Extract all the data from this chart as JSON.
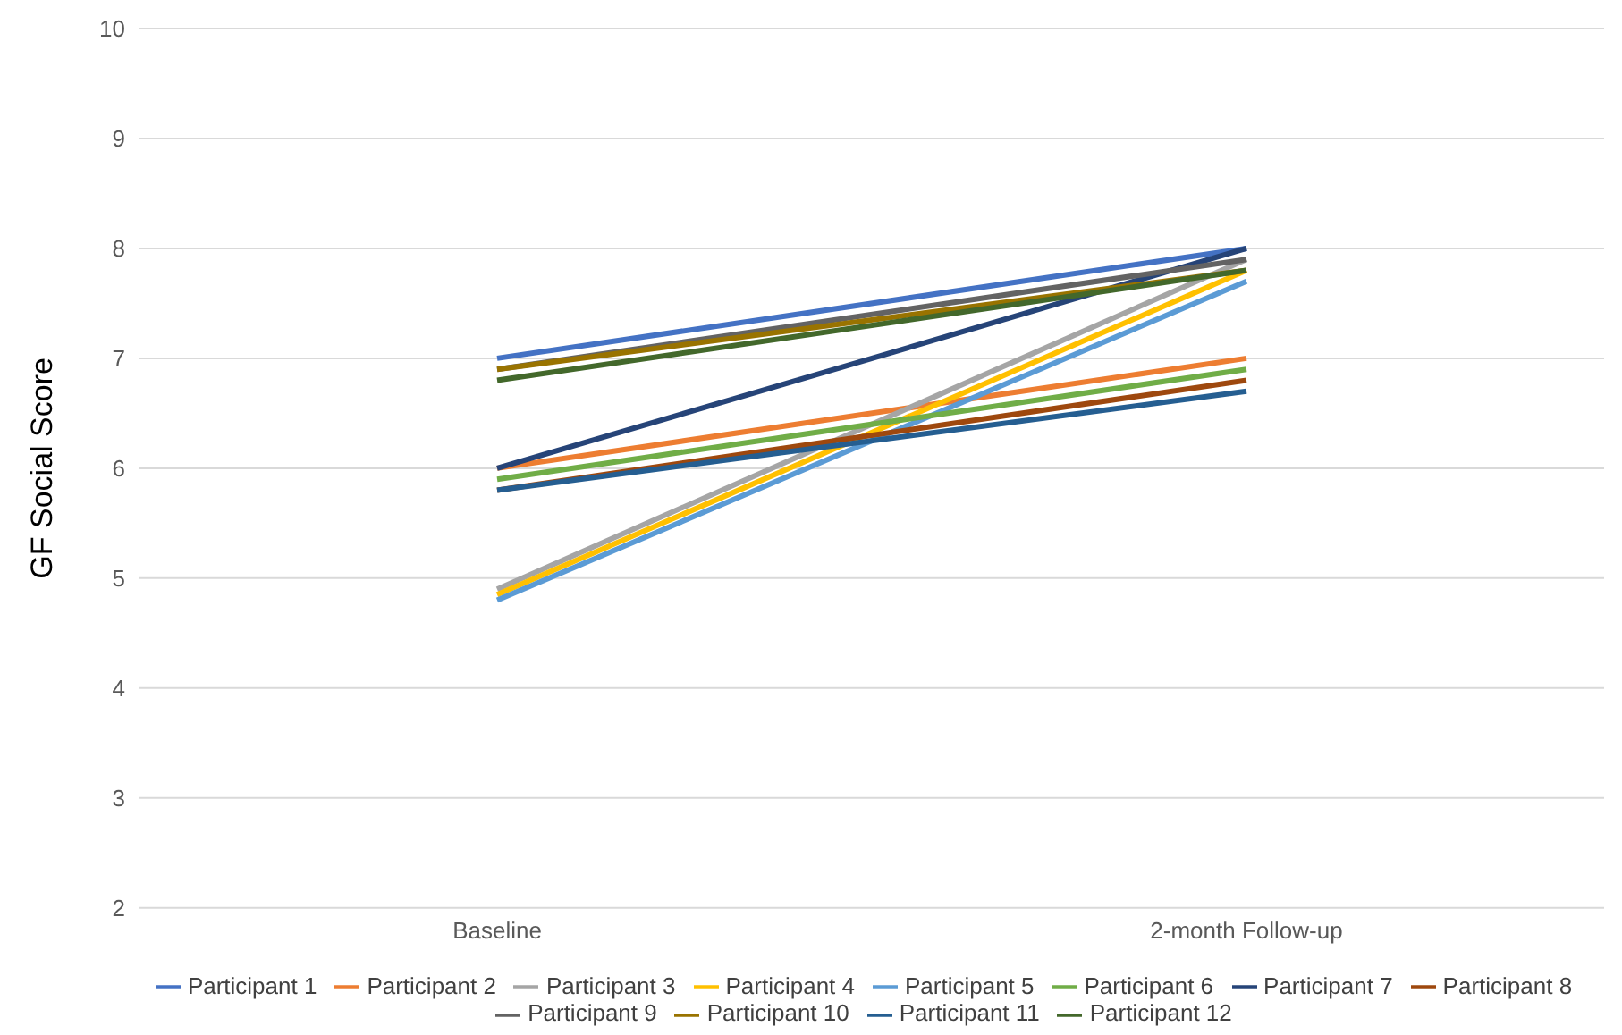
{
  "chart_data": {
    "type": "line",
    "ylabel": "GF Social Score",
    "categories": [
      "Baseline",
      "2-month Follow-up"
    ],
    "ylim": [
      2,
      10
    ],
    "yticks": [
      2,
      3,
      4,
      5,
      6,
      7,
      8,
      9,
      10
    ],
    "grid": "y",
    "legend": "bottom",
    "marker": "none",
    "line_style": "solid",
    "series": [
      {
        "name": "Participant 1",
        "color": "#4472c4",
        "values": [
          7.0,
          8.0
        ]
      },
      {
        "name": "Participant 2",
        "color": "#ed7d31",
        "values": [
          6.0,
          7.0
        ]
      },
      {
        "name": "Participant 3",
        "color": "#a5a5a5",
        "values": [
          4.9,
          7.9
        ]
      },
      {
        "name": "Participant 4",
        "color": "#ffc000",
        "values": [
          4.85,
          7.8
        ]
      },
      {
        "name": "Participant 5",
        "color": "#5b9bd5",
        "values": [
          4.8,
          7.7
        ]
      },
      {
        "name": "Participant 6",
        "color": "#70ad47",
        "values": [
          5.9,
          6.9
        ]
      },
      {
        "name": "Participant 7",
        "color": "#264478",
        "values": [
          6.0,
          8.0
        ]
      },
      {
        "name": "Participant 8",
        "color": "#9e480e",
        "values": [
          5.8,
          6.8
        ]
      },
      {
        "name": "Participant 9",
        "color": "#636363",
        "values": [
          6.9,
          7.9
        ]
      },
      {
        "name": "Participant 10",
        "color": "#997300",
        "values": [
          6.9,
          7.8
        ]
      },
      {
        "name": "Participant 11",
        "color": "#255e91",
        "values": [
          5.8,
          6.7
        ]
      },
      {
        "name": "Participant 12",
        "color": "#43682b",
        "values": [
          6.8,
          7.8
        ]
      }
    ]
  }
}
